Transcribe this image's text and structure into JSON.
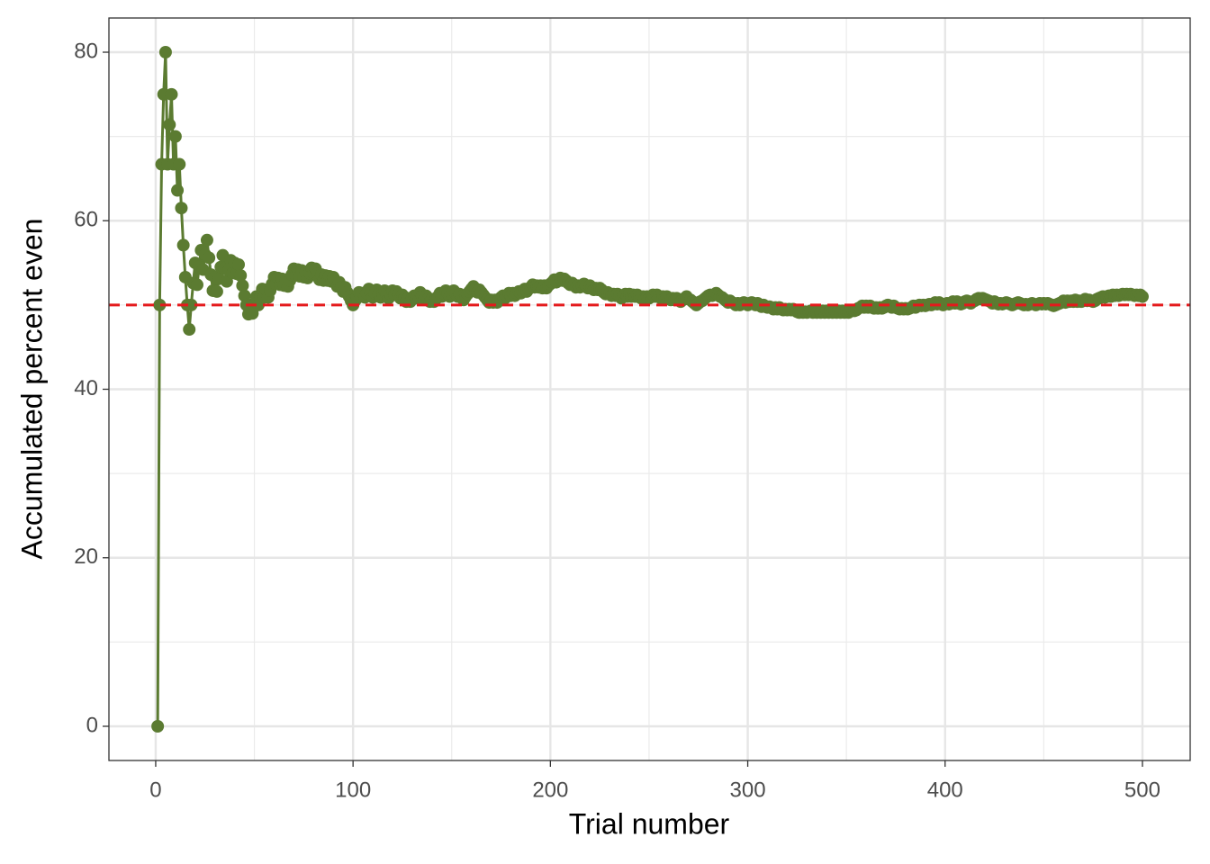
{
  "chart_data": {
    "type": "line",
    "x_label": "Trial number",
    "y_label": "Accumulated percent even",
    "xlim": [
      -23.7,
      524.2
    ],
    "ylim": [
      -4.06,
      84.06
    ],
    "xticks": [
      0,
      100,
      200,
      300,
      400,
      500
    ],
    "yticks": [
      0,
      20,
      40,
      60,
      80
    ],
    "minor_xticks": [
      50,
      150,
      250,
      350,
      450
    ],
    "minor_yticks": [
      10,
      30,
      50,
      70
    ],
    "grid": true,
    "hline": 50,
    "hline_color": "#e41a1c",
    "color": "#5b7b31",
    "x": [
      1,
      2,
      3,
      4,
      5,
      6,
      7,
      8,
      9,
      10,
      11,
      12,
      13,
      14,
      15,
      16,
      17,
      18,
      19,
      20,
      21,
      22,
      23,
      24,
      25,
      26,
      27,
      28,
      29,
      30,
      31,
      32,
      33,
      34,
      35,
      36,
      37,
      38,
      39,
      40,
      41,
      42,
      43,
      44,
      45,
      46,
      47,
      48,
      49,
      50,
      51,
      52,
      53,
      54,
      55,
      56,
      57,
      58,
      59,
      60,
      61,
      62,
      63,
      64,
      65,
      66,
      67,
      68,
      69,
      70,
      71,
      72,
      73,
      74,
      75,
      76,
      77,
      78,
      79,
      80,
      81,
      82,
      83,
      84,
      85,
      86,
      87,
      88,
      89,
      90,
      91,
      92,
      93,
      94,
      95,
      96,
      97,
      98,
      99,
      100,
      101,
      102,
      103,
      104,
      105,
      106,
      107,
      108,
      109,
      110,
      111,
      112,
      113,
      114,
      115,
      116,
      117,
      118,
      119,
      120,
      121,
      122,
      123,
      124,
      125,
      126,
      127,
      128,
      129,
      130,
      131,
      132,
      133,
      134,
      135,
      136,
      137,
      138,
      139,
      140,
      141,
      142,
      143,
      144,
      145,
      146,
      147,
      148,
      149,
      150,
      151,
      152,
      153,
      154,
      155,
      156,
      157,
      158,
      159,
      160,
      161,
      162,
      163,
      164,
      165,
      166,
      167,
      168,
      169,
      170,
      171,
      172,
      173,
      174,
      175,
      176,
      177,
      178,
      179,
      180,
      181,
      182,
      183,
      184,
      185,
      186,
      187,
      188,
      189,
      190,
      191,
      192,
      193,
      194,
      195,
      196,
      197,
      198,
      199,
      200,
      201,
      202,
      203,
      204,
      205,
      206,
      207,
      208,
      209,
      210,
      211,
      212,
      213,
      214,
      215,
      216,
      217,
      218,
      219,
      220,
      221,
      222,
      223,
      224,
      225,
      226,
      227,
      228,
      229,
      230,
      231,
      232,
      233,
      234,
      235,
      236,
      237,
      238,
      239,
      240,
      241,
      242,
      243,
      244,
      245,
      246,
      247,
      248,
      249,
      250,
      251,
      252,
      253,
      254,
      255,
      256,
      257,
      258,
      259,
      260,
      261,
      262,
      263,
      264,
      265,
      266,
      267,
      268,
      269,
      270,
      271,
      272,
      273,
      274,
      275,
      276,
      277,
      278,
      279,
      280,
      281,
      282,
      283,
      284,
      285,
      286,
      287,
      288,
      289,
      290,
      291,
      292,
      293,
      294,
      295,
      296,
      297,
      298,
      299,
      300,
      301,
      302,
      303,
      304,
      305,
      306,
      307,
      308,
      309,
      310,
      311,
      312,
      313,
      314,
      315,
      316,
      317,
      318,
      319,
      320,
      321,
      322,
      323,
      324,
      325,
      326,
      327,
      328,
      329,
      330,
      331,
      332,
      333,
      334,
      335,
      336,
      337,
      338,
      339,
      340,
      341,
      342,
      343,
      344,
      345,
      346,
      347,
      348,
      349,
      350,
      351,
      352,
      353,
      354,
      355,
      356,
      357,
      358,
      359,
      360,
      361,
      362,
      363,
      364,
      365,
      366,
      367,
      368,
      369,
      370,
      371,
      372,
      373,
      374,
      375,
      376,
      377,
      378,
      379,
      380,
      381,
      382,
      383,
      384,
      385,
      386,
      387,
      388,
      389,
      390,
      391,
      392,
      393,
      394,
      395,
      396,
      397,
      398,
      399,
      400,
      401,
      402,
      403,
      404,
      405,
      406,
      407,
      408,
      409,
      410,
      411,
      412,
      413,
      414,
      415,
      416,
      417,
      418,
      419,
      420,
      421,
      422,
      423,
      424,
      425,
      426,
      427,
      428,
      429,
      430,
      431,
      432,
      433,
      434,
      435,
      436,
      437,
      438,
      439,
      440,
      441,
      442,
      443,
      444,
      445,
      446,
      447,
      448,
      449,
      450,
      451,
      452,
      453,
      454,
      455,
      456,
      457,
      458,
      459,
      460,
      461,
      462,
      463,
      464,
      465,
      466,
      467,
      468,
      469,
      470,
      471,
      472,
      473,
      474,
      475,
      476,
      477,
      478,
      479,
      480,
      481,
      482,
      483,
      484,
      485,
      486,
      487,
      488,
      489,
      490,
      491,
      492,
      493,
      494,
      495,
      496,
      497,
      498,
      499,
      500
    ],
    "values": [
      0,
      50,
      66.7,
      75,
      80,
      66.7,
      71.4,
      75,
      66.7,
      70,
      63.6,
      66.7,
      61.5,
      57.1,
      53.3,
      50,
      47.1,
      50,
      52.6,
      55,
      52.4,
      54.5,
      56.5,
      54.2,
      56,
      57.7,
      55.6,
      53.6,
      51.7,
      53.3,
      51.6,
      53.1,
      54.5,
      55.9,
      54.3,
      52.8,
      54.1,
      55.3,
      53.8,
      55,
      53.7,
      54.8,
      53.5,
      52.3,
      51.1,
      50,
      48.9,
      50,
      49,
      50,
      51,
      50,
      50.9,
      51.9,
      50.9,
      51.8,
      50.9,
      51.7,
      52.5,
      53.3,
      52.5,
      53.2,
      52.4,
      53.1,
      52.3,
      53,
      52.2,
      52.9,
      53.6,
      54.3,
      53.5,
      54.2,
      53.4,
      54.1,
      53.3,
      53.9,
      53.2,
      53.8,
      54.4,
      53.8,
      54.3,
      53.7,
      53,
      53.6,
      52.9,
      53.5,
      52.9,
      53.4,
      52.8,
      53.3,
      52.7,
      52.2,
      52.7,
      52.1,
      51.6,
      52.1,
      51.5,
      51,
      50.5,
      50,
      50.5,
      51,
      51.5,
      51,
      51.4,
      50.9,
      51.4,
      51.9,
      51.4,
      50.9,
      51.4,
      51.8,
      51.3,
      50.9,
      51.3,
      51.7,
      51.3,
      50.8,
      51.3,
      51.7,
      51.2,
      51.6,
      51.2,
      50.8,
      51.2,
      50.8,
      50.4,
      50.8,
      50.4,
      50.8,
      51.1,
      50.8,
      51.1,
      51.5,
      51.1,
      50.7,
      51.1,
      50.7,
      50.4,
      50.7,
      50.4,
      50.7,
      51,
      51.4,
      51,
      51.4,
      51.7,
      51.4,
      51,
      51.3,
      51.7,
      51.3,
      51,
      51.3,
      51,
      50.6,
      51,
      51.3,
      51.6,
      51.9,
      52.2,
      51.9,
      51.5,
      51.8,
      51.5,
      51.2,
      50.9,
      50.6,
      50.3,
      50.6,
      50.3,
      50.6,
      50.3,
      50.6,
      50.9,
      51.1,
      50.8,
      51.1,
      51.4,
      51.1,
      51.4,
      51.1,
      51.4,
      51.6,
      51.4,
      51.6,
      51.9,
      51.6,
      51.9,
      52.1,
      52.4,
      52.1,
      52.3,
      52.1,
      52.3,
      52,
      52.3,
      52,
      52.3,
      52.5,
      52.7,
      53,
      52.7,
      53,
      53.2,
      52.9,
      53.1,
      52.9,
      52.6,
      52.4,
      52.6,
      52.4,
      52.1,
      52.3,
      52.1,
      52.3,
      52.5,
      52.3,
      52,
      52.3,
      52,
      51.8,
      52,
      51.8,
      52,
      51.8,
      51.5,
      51.3,
      51.5,
      51.3,
      51.1,
      51.3,
      51.1,
      51.3,
      51.1,
      50.8,
      51.1,
      51.3,
      51,
      51.3,
      51,
      51.2,
      51,
      51.2,
      51,
      50.8,
      51,
      50.8,
      51,
      50.8,
      51,
      51.2,
      51,
      51.2,
      51,
      50.8,
      51,
      50.8,
      51,
      50.8,
      50.6,
      50.8,
      50.6,
      50.8,
      50.6,
      50.4,
      50.6,
      50.8,
      51,
      50.7,
      50.6,
      50.4,
      50.2,
      50,
      50.2,
      50.4,
      50.5,
      50.7,
      50.9,
      51.1,
      51.2,
      51.1,
      51.2,
      51.4,
      51.2,
      51,
      50.9,
      50.7,
      50.5,
      50.3,
      50.5,
      50.3,
      50.2,
      50,
      50.2,
      50,
      50.2,
      50.3,
      50.2,
      50,
      50.2,
      50.3,
      50.2,
      50,
      50.2,
      50,
      49.8,
      50,
      49.8,
      49.7,
      49.8,
      49.7,
      49.5,
      49.7,
      49.5,
      49.7,
      49.5,
      49.4,
      49.5,
      49.4,
      49.5,
      49.4,
      49.5,
      49.4,
      49.2,
      49.1,
      49.2,
      49.1,
      49.2,
      49.1,
      49.2,
      49.3,
      49.1,
      49.3,
      49.1,
      49.3,
      49.1,
      49.3,
      49.1,
      49.3,
      49.1,
      49.3,
      49.1,
      49.3,
      49.1,
      49.3,
      49.1,
      49.3,
      49.1,
      49.3,
      49.1,
      49.3,
      49.4,
      49.3,
      49.4,
      49.6,
      49.7,
      49.9,
      49.7,
      49.9,
      49.7,
      49.9,
      49.7,
      49.6,
      49.7,
      49.6,
      49.7,
      49.6,
      49.7,
      49.9,
      50,
      49.9,
      49.7,
      49.9,
      49.7,
      49.6,
      49.5,
      49.6,
      49.5,
      49.6,
      49.5,
      49.6,
      49.7,
      49.9,
      49.7,
      49.9,
      50,
      49.9,
      50,
      49.9,
      50,
      50.1,
      50,
      50.1,
      50.3,
      50.1,
      50.3,
      50.1,
      50,
      50.1,
      50.2,
      50.1,
      50.2,
      50.4,
      50.2,
      50.4,
      50.2,
      50.1,
      50.2,
      50.4,
      50.5,
      50.4,
      50.2,
      50.4,
      50.5,
      50.7,
      50.8,
      50.7,
      50.8,
      50.7,
      50.6,
      50.5,
      50.4,
      50.2,
      50.4,
      50.2,
      50.1,
      50.2,
      50.1,
      50.2,
      50.3,
      50.2,
      50.1,
      50,
      50.1,
      50.2,
      50.3,
      50.2,
      50.1,
      50,
      50.1,
      50,
      50.1,
      50.2,
      50.1,
      50,
      50.1,
      50.2,
      50.1,
      50.2,
      50.1,
      50.2,
      50.1,
      50,
      49.9,
      50,
      50.1,
      50.2,
      50.3,
      50.5,
      50.3,
      50.5,
      50.4,
      50.5,
      50.4,
      50.6,
      50.4,
      50.5,
      50.4,
      50.5,
      50.7,
      50.5,
      50.6,
      50.5,
      50.4,
      50.5,
      50.7,
      50.8,
      50.9,
      51,
      50.9,
      51,
      51.1,
      51,
      51.2,
      51.1,
      51.2,
      51.1,
      51.2,
      51.3,
      51.2,
      51.3,
      51.2,
      51.3,
      51.2,
      51.1,
      51.2,
      51.1,
      51.2,
      51
    ]
  }
}
